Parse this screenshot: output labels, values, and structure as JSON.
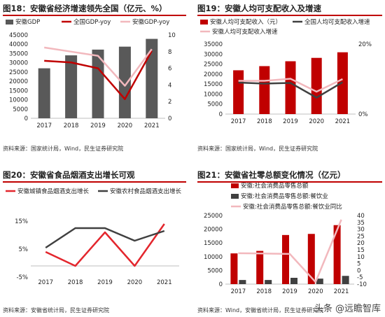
{
  "chart_data": [
    {
      "type": "bar",
      "title": "图18：安徽省经济增速领先全国（亿元、%）",
      "source": "资料来源：国家统计局，Wind，民生证券研究院",
      "categories": [
        "2017",
        "2018",
        "2019",
        "2020",
        "2021"
      ],
      "ylim": [
        0,
        45000
      ],
      "yticks": [
        "0",
        "5000",
        "10000",
        "15000",
        "20000",
        "25000",
        "30000",
        "35000",
        "40000",
        "45000"
      ],
      "y2lim": [
        0,
        10
      ],
      "y2ticks": [
        "0",
        "2",
        "4",
        "6",
        "8",
        "10"
      ],
      "series": [
        {
          "name": "安徽GDP",
          "kind": "bar",
          "axis": "left",
          "color": "#595959",
          "values": [
            27000,
            34000,
            37100,
            38700,
            42900
          ]
        },
        {
          "name": "全国GDP-yoy",
          "kind": "line",
          "axis": "right",
          "color": "#c00000",
          "values": [
            6.9,
            6.7,
            6.0,
            2.3,
            8.1
          ]
        },
        {
          "name": "安徽GDP-yoy",
          "kind": "line",
          "axis": "right",
          "color": "#f2b8bd",
          "values": [
            8.5,
            8.0,
            7.5,
            3.9,
            8.3
          ]
        }
      ]
    },
    {
      "type": "bar",
      "title": "图19：安徽人均可支配收入及增速",
      "source": "资料来源：国家统计局，Wind，民生证券研究院",
      "categories": [
        "2017",
        "2018",
        "2019",
        "2020",
        "2021"
      ],
      "ylim": [
        0,
        35000
      ],
      "yticks": [
        "0",
        "5000",
        "10000",
        "15000",
        "20000",
        "25000",
        "30000",
        "35000"
      ],
      "y2lim": [
        0,
        20
      ],
      "y2ticks": [
        "0%",
        "20%"
      ],
      "series": [
        {
          "name": "安徽人均可支配收入（元）",
          "kind": "bar",
          "axis": "left",
          "color": "#c00000",
          "values": [
            21900,
            23980,
            26415,
            28103,
            30904
          ]
        },
        {
          "name": "全国人均可支配收入增速",
          "kind": "line",
          "axis": "right",
          "color": "#404040",
          "values": [
            9.0,
            8.7,
            8.9,
            4.7,
            9.1
          ]
        },
        {
          "name": "安徽人均可支配收入增速",
          "kind": "line",
          "axis": "right",
          "color": "#f2b8bd",
          "values": [
            9.5,
            9.5,
            10.1,
            6.4,
            10.0
          ]
        }
      ]
    },
    {
      "type": "line",
      "title": "图20：安徽省食品烟酒支出增长可观",
      "source": "资料来源：安徽省统计局，民生证券研究院",
      "categories": [
        "2017",
        "2018",
        "2019",
        "2020",
        "2021"
      ],
      "ylim": [
        -5,
        15
      ],
      "yticks": [
        "-5%",
        "5%",
        "15%"
      ],
      "series": [
        {
          "name": "安徽城镇食品烟酒支出增长",
          "color": "#e3262d",
          "values": [
            4.0,
            -1.0,
            11.0,
            -1.0,
            14.0
          ]
        },
        {
          "name": "安徽农村食品烟酒支出增长",
          "color": "#404040",
          "values": [
            5.5,
            12.5,
            12.5,
            8.0,
            11.5
          ]
        }
      ]
    },
    {
      "type": "bar",
      "title": "图21：安徽省社零总额变化情况（亿元）",
      "source": "资料来源：Wind，安徽省统计局，民生证券研究院",
      "categories": [
        "2017",
        "2018",
        "2019",
        "2020",
        "2021"
      ],
      "ylim": [
        0,
        25000
      ],
      "yticks": [
        "0",
        "5000",
        "10000",
        "15000",
        "20000",
        "25000"
      ],
      "y2lim": [
        -10,
        40
      ],
      "y2ticks": [
        "-10",
        "-5",
        "0",
        "5",
        "10",
        "15",
        "20",
        "25",
        "30",
        "35",
        "40"
      ],
      "series": [
        {
          "name": "安徽:社会消费品零售总额",
          "kind": "bar",
          "axis": "left",
          "color": "#c00000",
          "values": [
            11200,
            12100,
            17900,
            18300,
            21500
          ]
        },
        {
          "name": "安徽:社会消费品零售总额:餐饮业",
          "kind": "bar",
          "axis": "left",
          "color": "#404040",
          "values": [
            1500,
            1500,
            2300,
            2000,
            3000
          ]
        },
        {
          "name": "安徽:社会消费品零售总额:餐饮业同比",
          "kind": "line",
          "axis": "right",
          "color": "#f2b8bd",
          "values": [
            12.5,
            12.3,
            12.0,
            -8.5,
            37.0
          ]
        }
      ]
    }
  ],
  "watermark": "头条 @远瞻智库"
}
